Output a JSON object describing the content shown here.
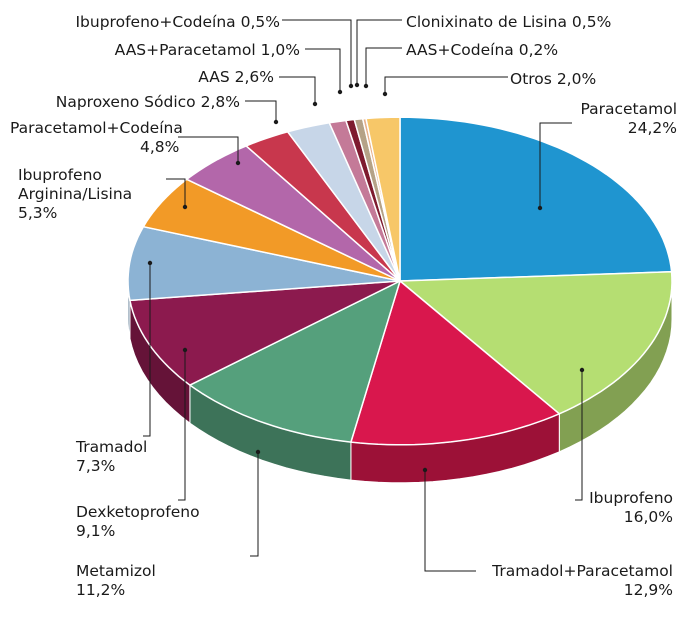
{
  "chart_data": {
    "type": "pie",
    "style": "3d-exploded-perspective",
    "slices": [
      {
        "label": "Paracetamol",
        "value": 24.2,
        "display": "24,2%",
        "color": "#1f95d0"
      },
      {
        "label": "Ibuprofeno",
        "value": 16.0,
        "display": "16,0%",
        "color": "#b5de72"
      },
      {
        "label": "Tramadol+Paracetamol",
        "value": 12.9,
        "display": "12,9%",
        "color": "#d9174d"
      },
      {
        "label": "Metamizol",
        "value": 11.2,
        "display": "11,2%",
        "color": "#55a07c"
      },
      {
        "label": "Dexketoprofeno",
        "value": 9.1,
        "display": "9,1%",
        "color": "#8c1a4e"
      },
      {
        "label": "Tramadol",
        "value": 7.3,
        "display": "7,3%",
        "color": "#8cb3d4"
      },
      {
        "label": "Ibuprofeno Arginina/Lisina",
        "value": 5.3,
        "display": "5,3%",
        "color": "#f29a27"
      },
      {
        "label": "Paracetamol+Codeína",
        "value": 4.8,
        "display": "4,8%",
        "color": "#b367aa"
      },
      {
        "label": "Naproxeno Sódico",
        "value": 2.8,
        "display": "2,8%",
        "color": "#c8374d"
      },
      {
        "label": "AAS",
        "value": 2.6,
        "display": "2,6%",
        "color": "#c7d6e8"
      },
      {
        "label": "AAS+Paracetamol",
        "value": 1.0,
        "display": "1,0%",
        "color": "#c47a98"
      },
      {
        "label": "Ibuprofeno+Codeína",
        "value": 0.5,
        "display": "0,5%",
        "color": "#7e1b2f"
      },
      {
        "label": "Clonixinato de Lisina",
        "value": 0.5,
        "display": "0,5%",
        "color": "#b5a287"
      },
      {
        "label": "AAS+Codeína",
        "value": 0.2,
        "display": "0,2%",
        "color": "#e8b08a"
      },
      {
        "label": "Otros",
        "value": 2.0,
        "display": "2,0%",
        "color": "#f7c768"
      }
    ]
  }
}
